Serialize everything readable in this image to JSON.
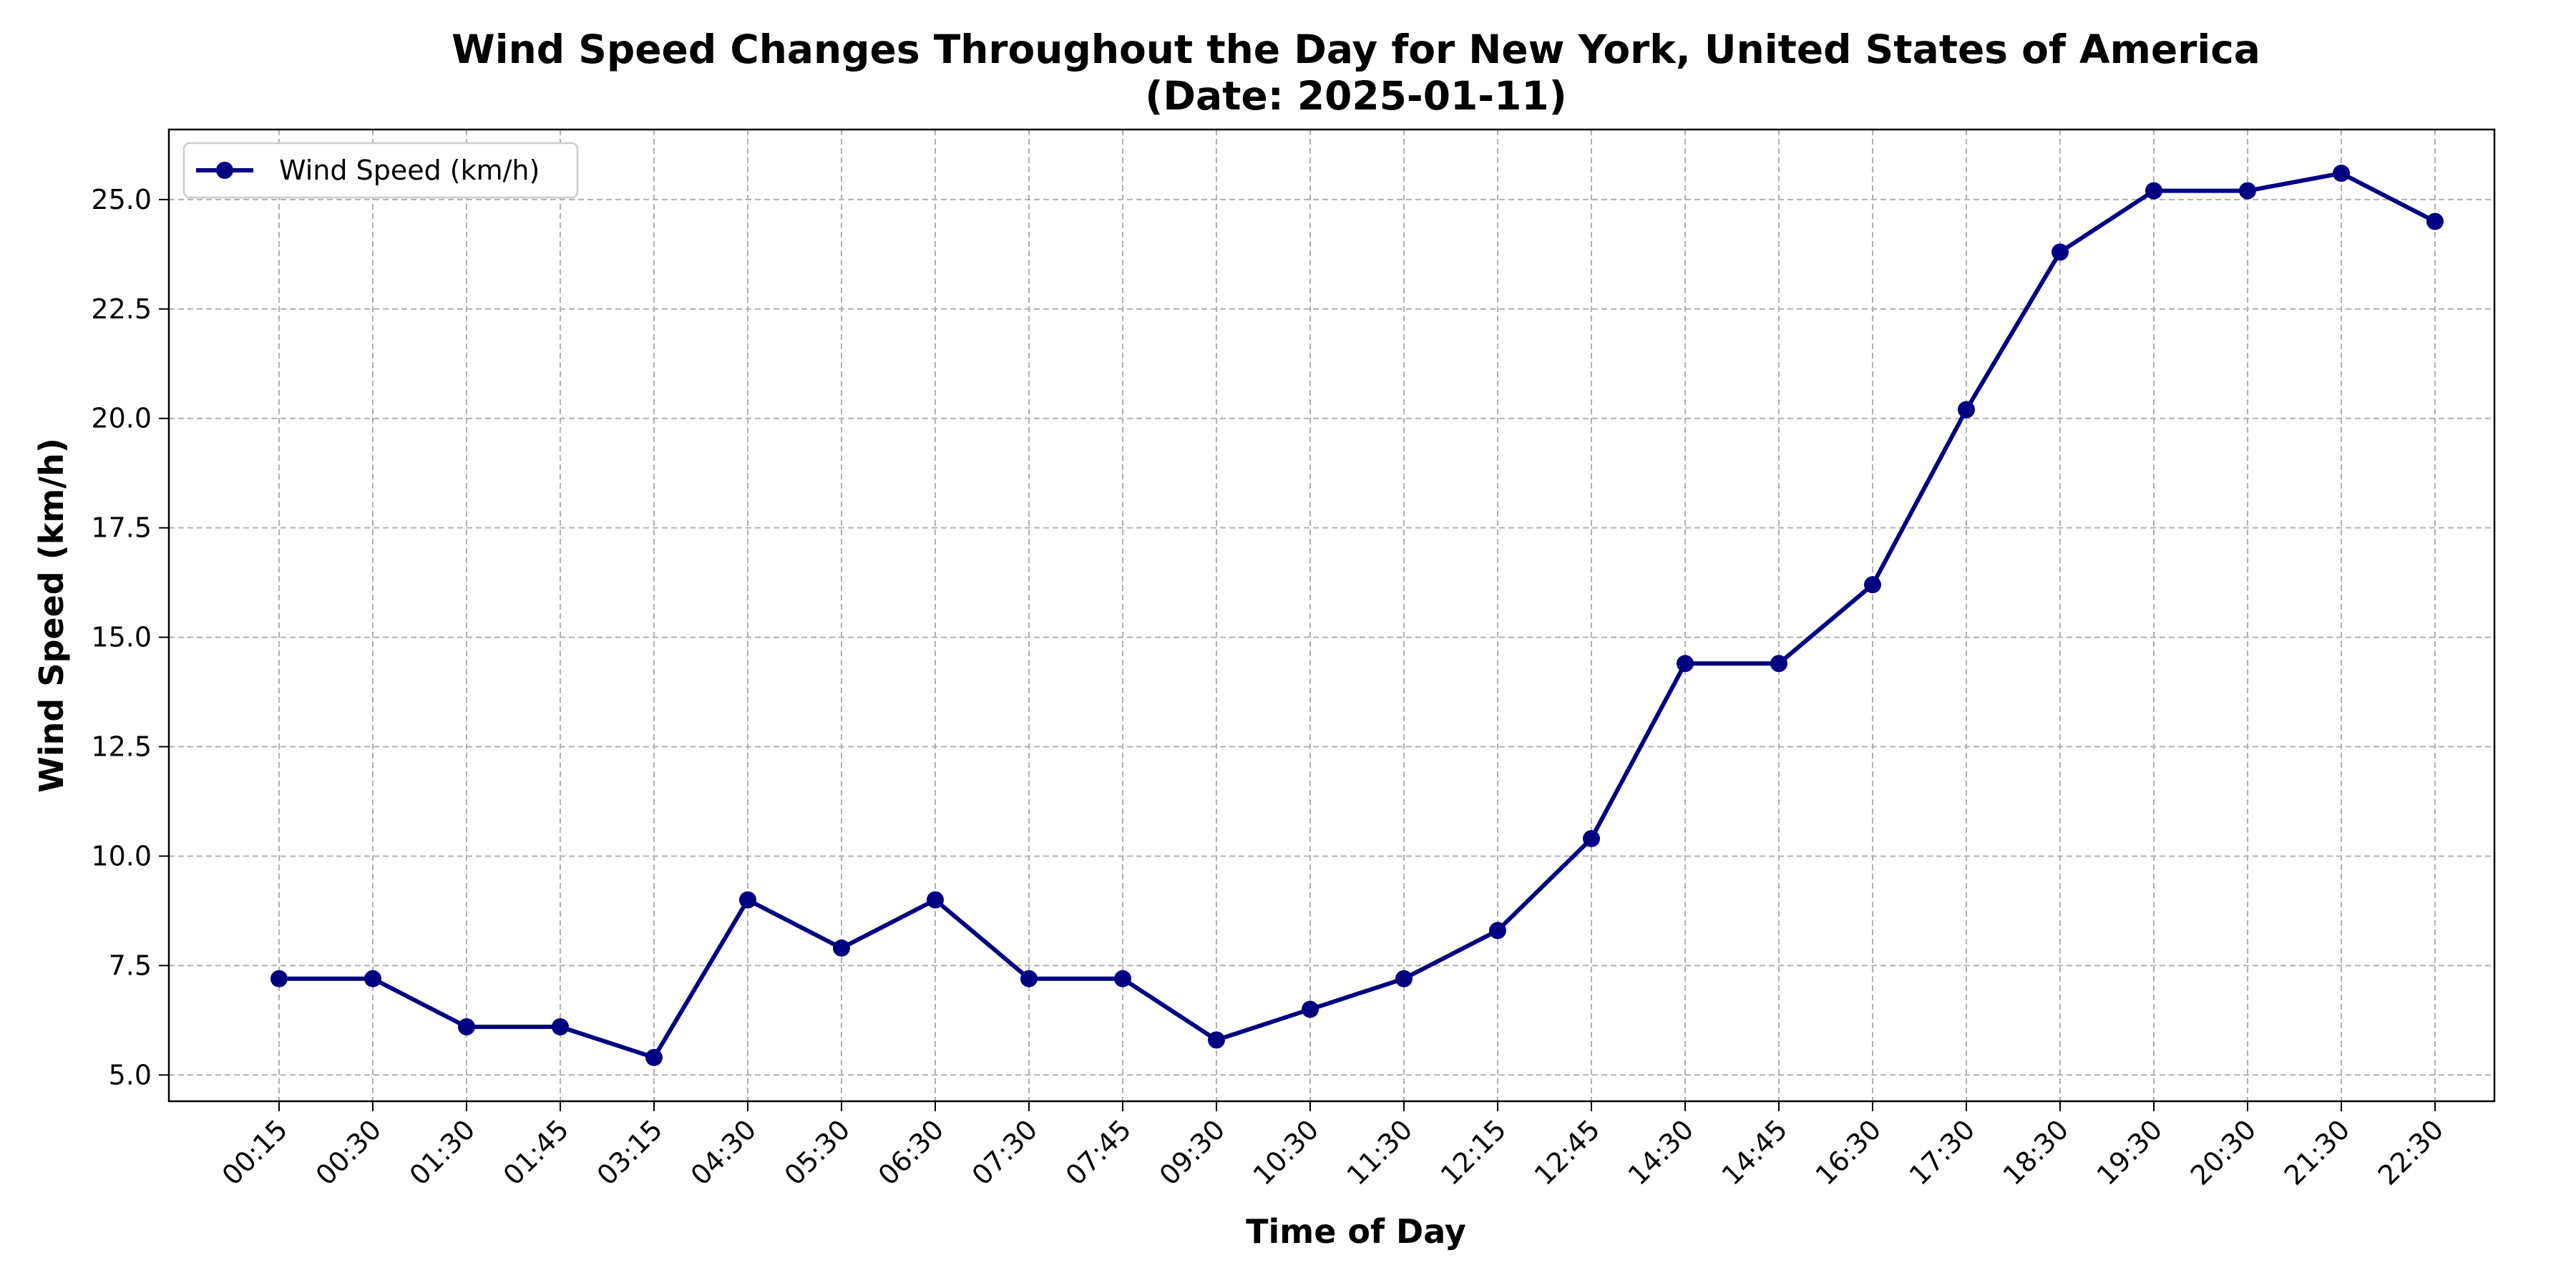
{
  "chart_data": {
    "type": "line",
    "title_line1": "Wind Speed Changes Throughout the Day for New York, United States of America",
    "title_line2": "(Date: 2025-01-11)",
    "xlabel": "Time of Day",
    "ylabel": "Wind Speed (km/h)",
    "categories": [
      "00:15",
      "00:30",
      "01:30",
      "01:45",
      "03:15",
      "04:30",
      "05:30",
      "06:30",
      "07:30",
      "07:45",
      "09:30",
      "10:30",
      "11:30",
      "12:15",
      "12:45",
      "14:30",
      "14:45",
      "16:30",
      "17:30",
      "18:30",
      "19:30",
      "20:30",
      "21:30",
      "22:30"
    ],
    "series": [
      {
        "name": "Wind Speed (km/h)",
        "color": "#000080",
        "values": [
          7.2,
          7.2,
          6.1,
          6.1,
          5.4,
          9.0,
          7.9,
          9.0,
          7.2,
          7.2,
          5.8,
          6.5,
          7.2,
          8.3,
          10.4,
          14.4,
          14.4,
          16.2,
          20.2,
          23.8,
          25.2,
          25.2,
          25.6,
          24.5
        ]
      }
    ],
    "ylim": [
      4.4,
      26.6
    ],
    "yticks": [
      "5.0",
      "7.5",
      "10.0",
      "12.5",
      "15.0",
      "17.5",
      "20.0",
      "22.5",
      "25.0"
    ],
    "grid": true,
    "legend_position": "top-left"
  }
}
